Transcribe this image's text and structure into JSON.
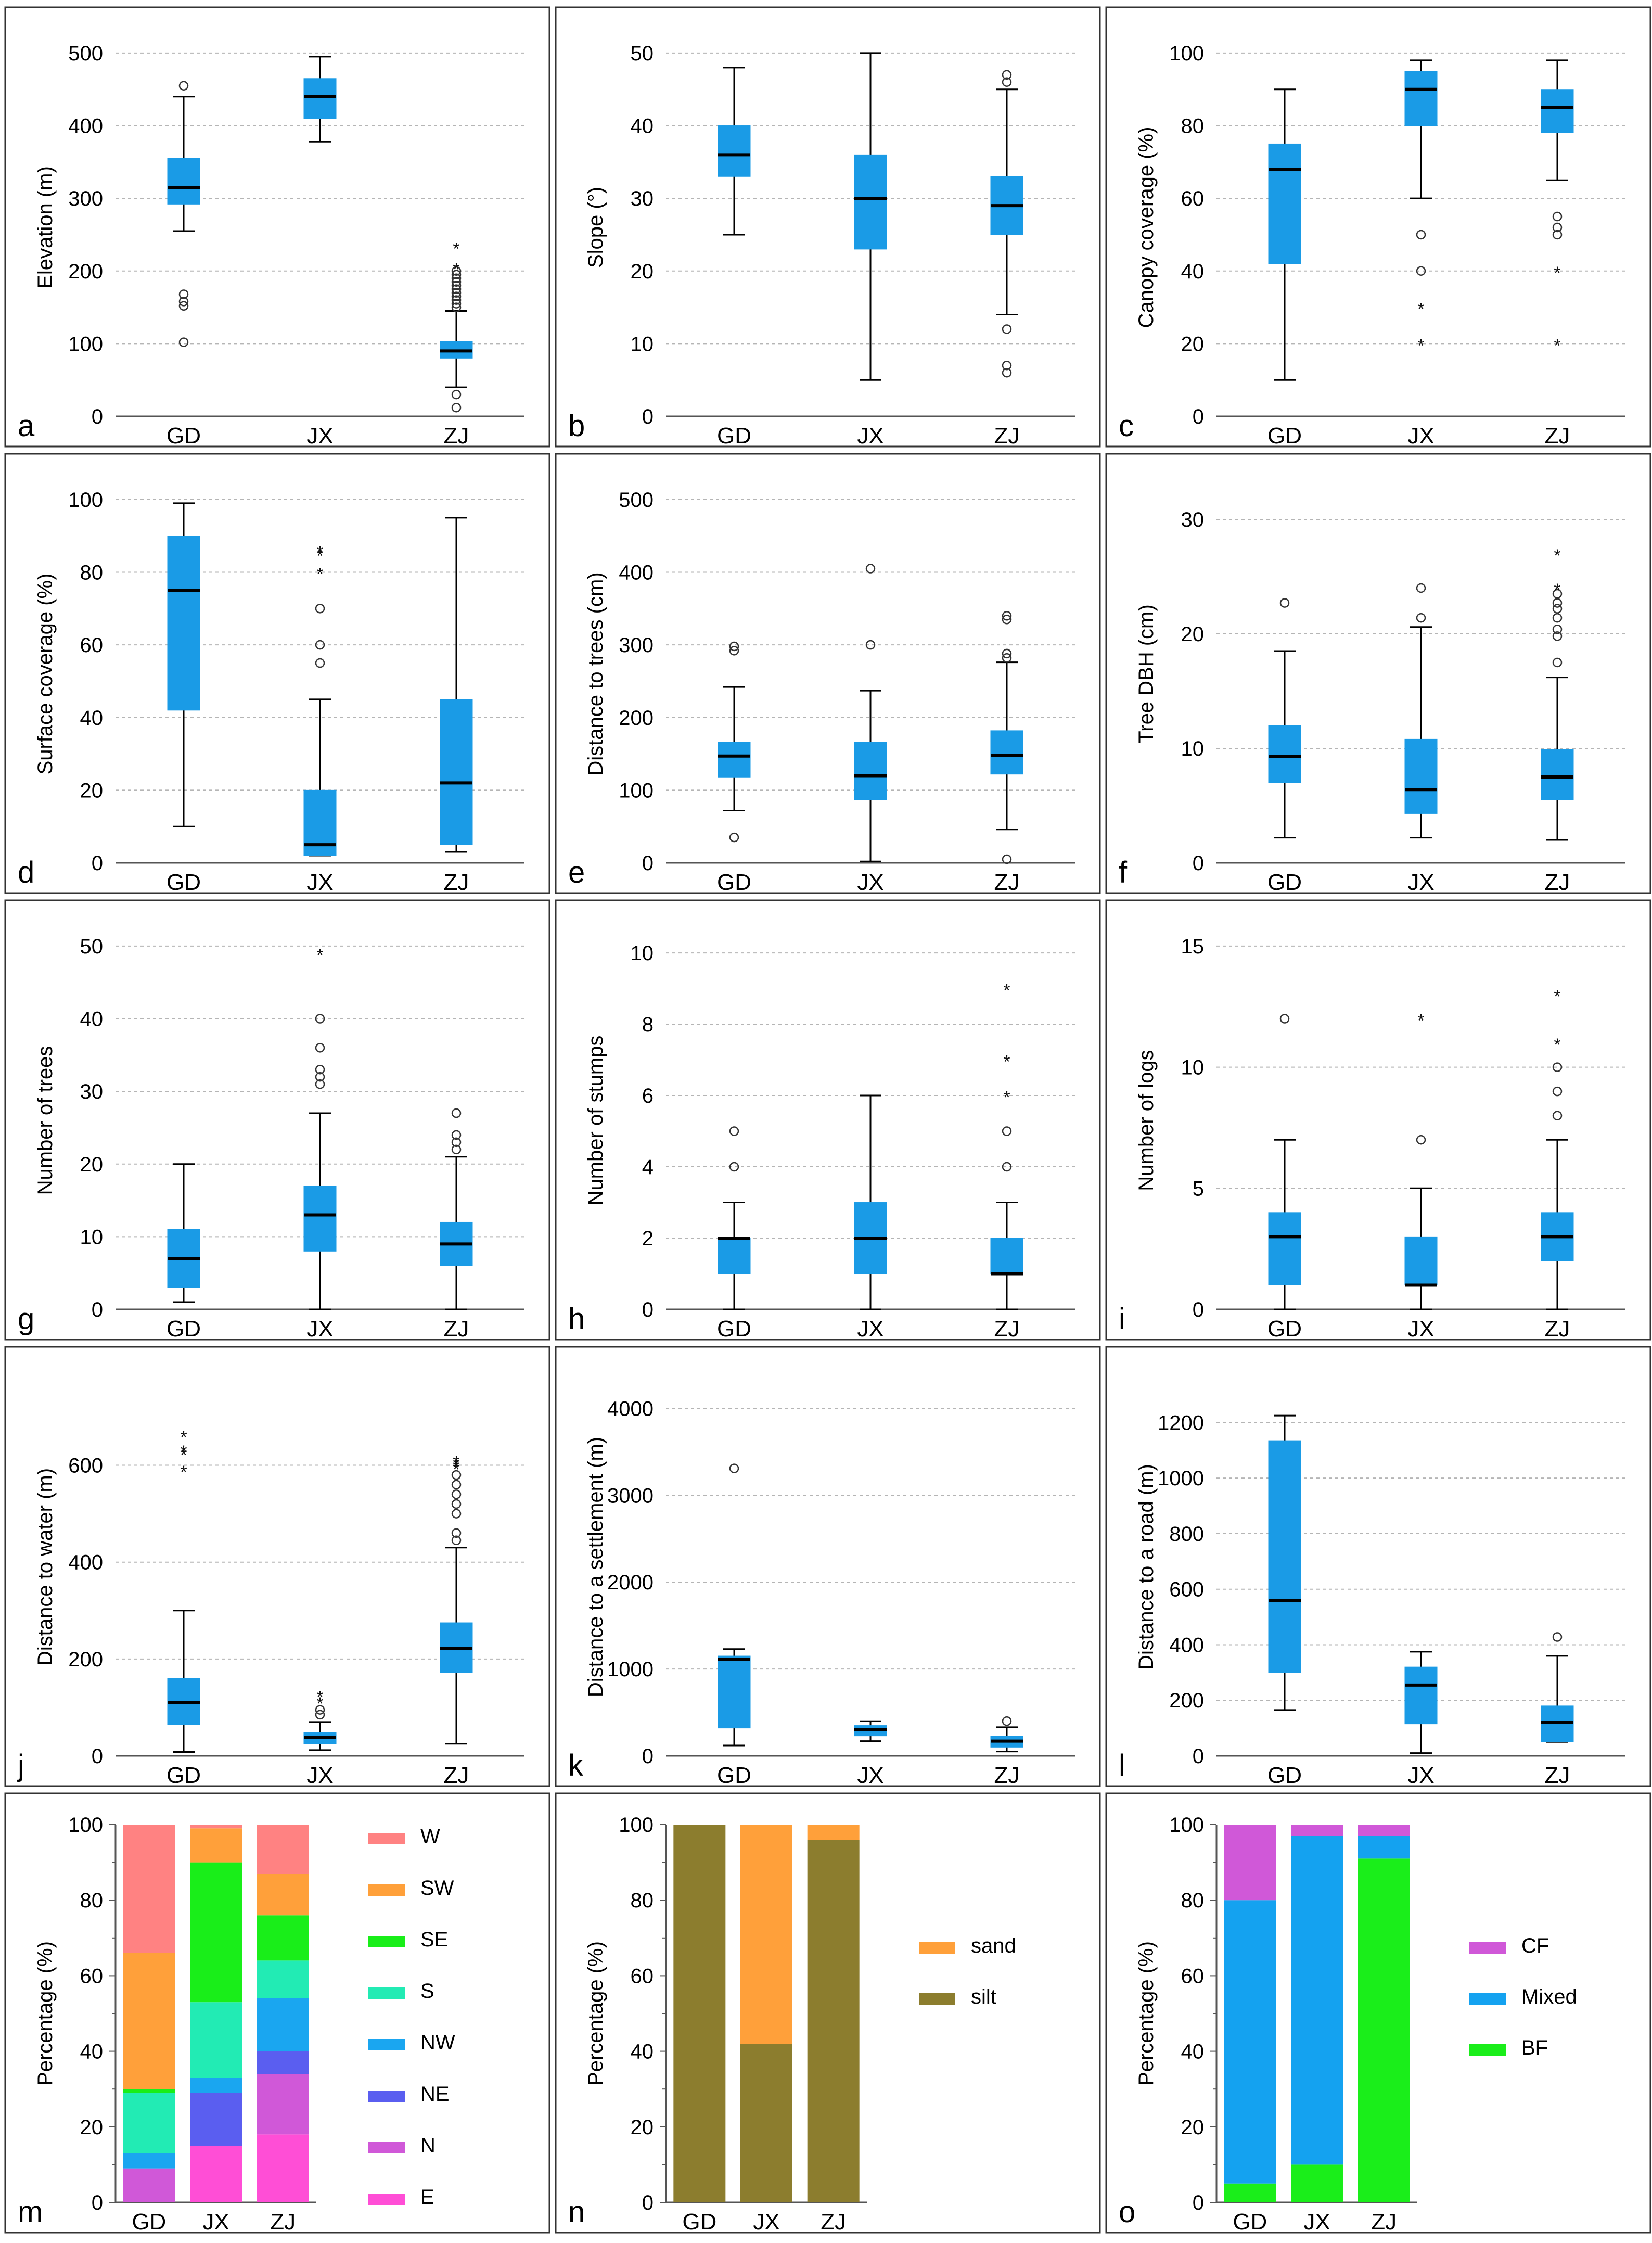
{
  "chart_data": [
    {
      "id": "a",
      "type": "box",
      "ylabel": "Elevation (m)",
      "ylim": [
        0,
        520
      ],
      "yticks": [
        0,
        100,
        200,
        300,
        400,
        500
      ],
      "categories": [
        "GD",
        "JX",
        "ZJ"
      ],
      "boxes": [
        {
          "whislo": 255,
          "q1": 292,
          "med": 315,
          "q3": 355,
          "whishi": 440
        },
        {
          "whislo": 378,
          "q1": 410,
          "med": 440,
          "q3": 465,
          "whishi": 495
        },
        {
          "whislo": 40,
          "q1": 80,
          "med": 90,
          "q3": 103,
          "whishi": 145
        }
      ],
      "outliers": [
        [
          102,
          152,
          158,
          168,
          455
        ],
        [],
        [
          12,
          30,
          150,
          155,
          160,
          165,
          170,
          175,
          180,
          185,
          190,
          195,
          200
        ]
      ],
      "extremes": [
        [],
        [],
        [
          205,
          233
        ]
      ]
    },
    {
      "id": "b",
      "type": "box",
      "ylabel": "Slope (°)",
      "ylim": [
        0,
        52
      ],
      "yticks": [
        0,
        10,
        20,
        30,
        40,
        50
      ],
      "categories": [
        "GD",
        "JX",
        "ZJ"
      ],
      "boxes": [
        {
          "whislo": 25,
          "q1": 33,
          "med": 36,
          "q3": 40,
          "whishi": 48
        },
        {
          "whislo": 5,
          "q1": 23,
          "med": 30,
          "q3": 36,
          "whishi": 50
        },
        {
          "whislo": 14,
          "q1": 25,
          "med": 29,
          "q3": 33,
          "whishi": 45
        }
      ],
      "outliers": [
        [],
        [],
        [
          6,
          7,
          12,
          46,
          47
        ]
      ],
      "extremes": [
        [],
        [],
        []
      ]
    },
    {
      "id": "c",
      "type": "box",
      "ylabel": "Canopy coverage (%)",
      "ylim": [
        0,
        104
      ],
      "yticks": [
        0,
        20,
        40,
        60,
        80,
        100
      ],
      "categories": [
        "GD",
        "JX",
        "ZJ"
      ],
      "boxes": [
        {
          "whislo": 10,
          "q1": 42,
          "med": 68,
          "q3": 75,
          "whishi": 90
        },
        {
          "whislo": 60,
          "q1": 80,
          "med": 90,
          "q3": 95,
          "whishi": 98
        },
        {
          "whislo": 65,
          "q1": 78,
          "med": 85,
          "q3": 90,
          "whishi": 98
        }
      ],
      "outliers": [
        [],
        [
          40,
          50
        ],
        [
          50,
          52,
          55
        ]
      ],
      "extremes": [
        [],
        [
          20,
          30
        ],
        [
          20,
          40
        ]
      ]
    },
    {
      "id": "d",
      "type": "box",
      "ylabel": "Surface coverage (%)",
      "ylim": [
        0,
        104
      ],
      "yticks": [
        0,
        20,
        40,
        60,
        80,
        100
      ],
      "categories": [
        "GD",
        "JX",
        "ZJ"
      ],
      "boxes": [
        {
          "whislo": 10,
          "q1": 42,
          "med": 75,
          "q3": 90,
          "whishi": 99
        },
        {
          "whislo": 2,
          "q1": 2,
          "med": 5,
          "q3": 20,
          "whishi": 45
        },
        {
          "whislo": 3,
          "q1": 5,
          "med": 22,
          "q3": 45,
          "whishi": 95
        }
      ],
      "outliers": [
        [],
        [
          55,
          60,
          70
        ],
        []
      ],
      "extremes": [
        [],
        [
          80,
          85,
          86
        ],
        []
      ]
    },
    {
      "id": "e",
      "type": "box",
      "ylabel": "Distance to trees (cm)",
      "ylim": [
        0,
        520
      ],
      "yticks": [
        0,
        100,
        200,
        300,
        400,
        500
      ],
      "categories": [
        "GD",
        "JX",
        "ZJ"
      ],
      "boxes": [
        {
          "whislo": 72,
          "q1": 118,
          "med": 147,
          "q3": 166,
          "whishi": 242
        },
        {
          "whislo": 2,
          "q1": 87,
          "med": 120,
          "q3": 166,
          "whishi": 237
        },
        {
          "whislo": 46,
          "q1": 122,
          "med": 148,
          "q3": 182,
          "whishi": 276
        }
      ],
      "outliers": [
        [
          35,
          292,
          298
        ],
        [
          300,
          405
        ],
        [
          5,
          282,
          288,
          335,
          340
        ]
      ],
      "extremes": [
        [],
        [],
        []
      ]
    },
    {
      "id": "f",
      "type": "box",
      "ylabel": "Tree DBH (cm)",
      "ylim": [
        0,
        33
      ],
      "yticks": [
        0,
        10,
        20,
        30
      ],
      "categories": [
        "GD",
        "JX",
        "ZJ"
      ],
      "boxes": [
        {
          "whislo": 2.2,
          "q1": 7,
          "med": 9.3,
          "q3": 12,
          "whishi": 18.5
        },
        {
          "whislo": 2.2,
          "q1": 4.3,
          "med": 6.4,
          "q3": 10.8,
          "whishi": 20.6
        },
        {
          "whislo": 2,
          "q1": 5.5,
          "med": 7.5,
          "q3": 9.9,
          "whishi": 16.2
        }
      ],
      "outliers": [
        [
          22.7
        ],
        [
          21.4,
          24
        ],
        [
          17.5,
          19.8,
          20.4,
          21.4,
          22.2,
          22.7,
          23.5
        ]
      ],
      "extremes": [
        [],
        [],
        [
          24,
          27
        ]
      ]
    },
    {
      "id": "g",
      "type": "box",
      "ylabel": "Number of trees",
      "ylim": [
        0,
        52
      ],
      "yticks": [
        0,
        10,
        20,
        30,
        40,
        50
      ],
      "categories": [
        "GD",
        "JX",
        "ZJ"
      ],
      "boxes": [
        {
          "whislo": 1,
          "q1": 3,
          "med": 7,
          "q3": 11,
          "whishi": 20
        },
        {
          "whislo": 0,
          "q1": 8,
          "med": 13,
          "q3": 17,
          "whishi": 27
        },
        {
          "whislo": 0,
          "q1": 6,
          "med": 9,
          "q3": 12,
          "whishi": 21
        }
      ],
      "outliers": [
        [],
        [
          31,
          32,
          33,
          36,
          40
        ],
        [
          22,
          23,
          24,
          27
        ]
      ],
      "extremes": [
        [],
        [
          49
        ],
        []
      ]
    },
    {
      "id": "h",
      "type": "box",
      "ylabel": "Number of stumps",
      "ylim": [
        0,
        10.6
      ],
      "yticks": [
        0,
        2,
        4,
        6,
        8,
        10
      ],
      "categories": [
        "GD",
        "JX",
        "ZJ"
      ],
      "boxes": [
        {
          "whislo": 0,
          "q1": 1,
          "med": 2,
          "q3": 2,
          "whishi": 3
        },
        {
          "whislo": 0,
          "q1": 1,
          "med": 2,
          "q3": 3,
          "whishi": 6
        },
        {
          "whislo": 0,
          "q1": 1,
          "med": 1,
          "q3": 2,
          "whishi": 3
        }
      ],
      "outliers": [
        [
          4,
          5
        ],
        [],
        [
          4,
          5
        ]
      ],
      "extremes": [
        [],
        [],
        [
          6,
          7,
          9
        ]
      ]
    },
    {
      "id": "i",
      "type": "box",
      "ylabel": "Number of logs",
      "ylim": [
        0,
        15.6
      ],
      "yticks": [
        0,
        5,
        10,
        15
      ],
      "categories": [
        "GD",
        "JX",
        "ZJ"
      ],
      "boxes": [
        {
          "whislo": 0,
          "q1": 1,
          "med": 3,
          "q3": 4,
          "whishi": 7
        },
        {
          "whislo": 0,
          "q1": 1,
          "med": 1,
          "q3": 3,
          "whishi": 5
        },
        {
          "whislo": 0,
          "q1": 2,
          "med": 3,
          "q3": 4,
          "whishi": 7
        }
      ],
      "outliers": [
        [
          12
        ],
        [
          7
        ],
        [
          8,
          9,
          10
        ]
      ],
      "extremes": [
        [],
        [
          12
        ],
        [
          11,
          13
        ]
      ]
    },
    {
      "id": "j",
      "type": "box",
      "ylabel": "Distance to water (m)",
      "ylim": [
        0,
        780
      ],
      "yticks": [
        0,
        200,
        400,
        600
      ],
      "categories": [
        "GD",
        "JX",
        "ZJ"
      ],
      "boxes": [
        {
          "whislo": 8,
          "q1": 65,
          "med": 110,
          "q3": 160,
          "whishi": 300
        },
        {
          "whislo": 12,
          "q1": 25,
          "med": 38,
          "q3": 48,
          "whishi": 70
        },
        {
          "whislo": 25,
          "q1": 172,
          "med": 222,
          "q3": 275,
          "whishi": 430
        }
      ],
      "outliers": [
        [],
        [
          85,
          95
        ],
        [
          445,
          460,
          500,
          520,
          540,
          560,
          580
        ]
      ],
      "extremes": [
        [
          590,
          625,
          632,
          662
        ],
        [
          112,
          125
        ],
        [
          595,
          600,
          605,
          610
        ]
      ]
    },
    {
      "id": "k",
      "type": "box",
      "ylabel": "Distance to a settlement (m)",
      "ylim": [
        0,
        4350
      ],
      "yticks": [
        0,
        1000,
        2000,
        3000,
        4000
      ],
      "categories": [
        "GD",
        "JX",
        "ZJ"
      ],
      "boxes": [
        {
          "whislo": 120,
          "q1": 320,
          "med": 1110,
          "q3": 1150,
          "whishi": 1230
        },
        {
          "whislo": 170,
          "q1": 230,
          "med": 300,
          "q3": 350,
          "whishi": 400
        },
        {
          "whislo": 50,
          "q1": 100,
          "med": 170,
          "q3": 230,
          "whishi": 330
        }
      ],
      "outliers": [
        [
          3310
        ],
        [],
        [
          400
        ]
      ],
      "extremes": [
        [],
        [],
        []
      ]
    },
    {
      "id": "l",
      "type": "box",
      "ylabel": "Distance to a road (m)",
      "ylim": [
        0,
        1360
      ],
      "yticks": [
        0,
        200,
        400,
        600,
        800,
        1000,
        1200
      ],
      "categories": [
        "GD",
        "JX",
        "ZJ"
      ],
      "boxes": [
        {
          "whislo": 165,
          "q1": 300,
          "med": 560,
          "q3": 1135,
          "whishi": 1225
        },
        {
          "whislo": 10,
          "q1": 115,
          "med": 255,
          "q3": 320,
          "whishi": 375
        },
        {
          "whislo": 50,
          "q1": 50,
          "med": 120,
          "q3": 180,
          "whishi": 360
        }
      ],
      "outliers": [
        [],
        [],
        [
          428
        ]
      ],
      "extremes": [
        [],
        [],
        []
      ]
    },
    {
      "id": "m",
      "type": "stacked-bar",
      "ylabel": "Percentage (%)",
      "ylim": [
        0,
        100
      ],
      "yticks": [
        0,
        20,
        40,
        60,
        80,
        100
      ],
      "categories": [
        "GD",
        "JX",
        "ZJ"
      ],
      "series": [
        {
          "name": "E",
          "color": "#ff4ed6",
          "values": [
            0,
            15,
            18
          ]
        },
        {
          "name": "N",
          "color": "#d058d8",
          "values": [
            9,
            0,
            16
          ]
        },
        {
          "name": "NE",
          "color": "#5a5ef0",
          "values": [
            0,
            14,
            6
          ]
        },
        {
          "name": "NW",
          "color": "#1aa6f0",
          "values": [
            4,
            4,
            14
          ]
        },
        {
          "name": "S",
          "color": "#22ebb4",
          "values": [
            16,
            20,
            10
          ]
        },
        {
          "name": "SE",
          "color": "#19ee19",
          "values": [
            1,
            37,
            12
          ]
        },
        {
          "name": "SW",
          "color": "#ffa03a",
          "values": [
            36,
            9,
            11
          ]
        },
        {
          "name": "W",
          "color": "#ff8282",
          "values": [
            34,
            1,
            13
          ]
        }
      ]
    },
    {
      "id": "n",
      "type": "stacked-bar",
      "ylabel": "Percentage (%)",
      "ylim": [
        0,
        100
      ],
      "yticks": [
        0,
        20,
        40,
        60,
        80,
        100
      ],
      "categories": [
        "GD",
        "JX",
        "ZJ"
      ],
      "series": [
        {
          "name": "silt",
          "color": "#8c7d2e",
          "values": [
            100,
            42,
            96
          ]
        },
        {
          "name": "sand",
          "color": "#ffa03a",
          "values": [
            0,
            58,
            4
          ]
        }
      ]
    },
    {
      "id": "o",
      "type": "stacked-bar",
      "ylabel": "Percentage (%)",
      "ylim": [
        0,
        100
      ],
      "yticks": [
        0,
        20,
        40,
        60,
        80,
        100
      ],
      "categories": [
        "GD",
        "JX",
        "ZJ"
      ],
      "series": [
        {
          "name": "BF",
          "color": "#1aee1a",
          "values": [
            5,
            10,
            91
          ]
        },
        {
          "name": "Mixed",
          "color": "#14a2f0",
          "values": [
            75,
            87,
            6
          ]
        },
        {
          "name": "CF",
          "color": "#d058d8",
          "values": [
            20,
            3,
            3
          ]
        }
      ]
    }
  ]
}
